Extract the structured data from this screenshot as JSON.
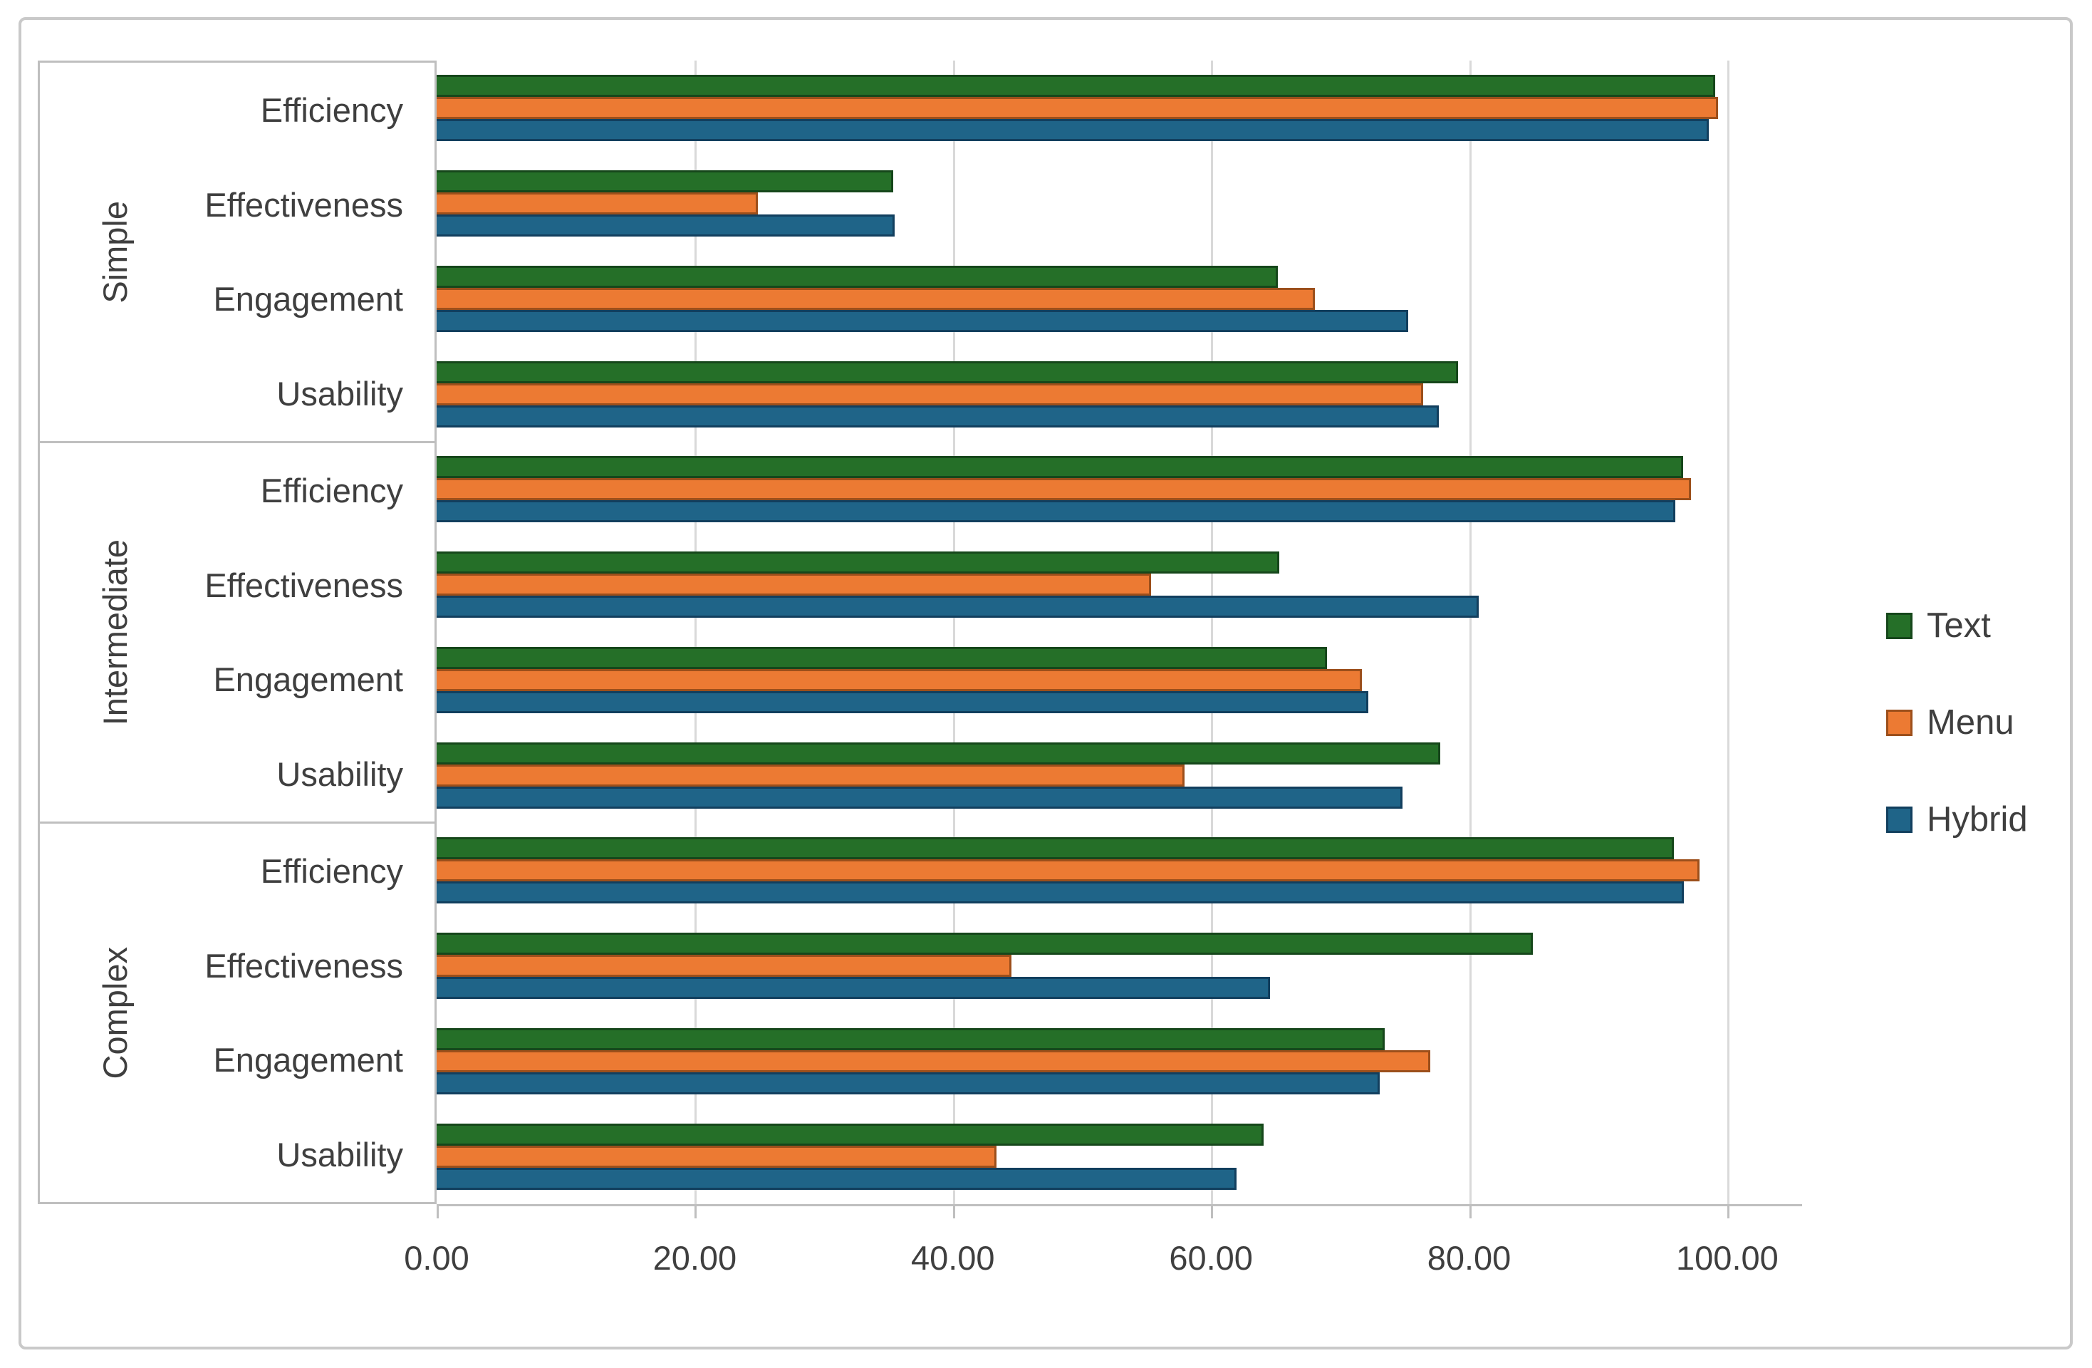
{
  "chart_data": {
    "type": "bar",
    "orientation": "horizontal",
    "grid": true,
    "legend_position": "right",
    "background": "#ffffff",
    "text_color": "#3F3F3F",
    "series": [
      {
        "name": "Text",
        "fill": "#256F28",
        "border": "#16471B"
      },
      {
        "name": "Menu",
        "fill": "#EC7A33",
        "border": "#9C4F1B"
      },
      {
        "name": "Hybrid",
        "fill": "#1F6488",
        "border": "#123F5E"
      }
    ],
    "groups": [
      {
        "label": "Simple",
        "rows": [
          {
            "category": "Efficiency",
            "values": [
              98.9,
              99.1,
              98.4
            ]
          },
          {
            "category": "Effectiveness",
            "values": [
              35.2,
              24.7,
              35.3
            ]
          },
          {
            "category": "Engagement",
            "values": [
              65.0,
              67.9,
              75.1
            ]
          },
          {
            "category": "Usability",
            "values": [
              79.0,
              76.3,
              77.5
            ]
          }
        ]
      },
      {
        "label": "Intermediate",
        "rows": [
          {
            "category": "Efficiency",
            "values": [
              96.4,
              97.0,
              95.8
            ]
          },
          {
            "category": "Effectiveness",
            "values": [
              65.1,
              55.2,
              80.6
            ]
          },
          {
            "category": "Engagement",
            "values": [
              68.8,
              71.5,
              72.0
            ]
          },
          {
            "category": "Usability",
            "values": [
              77.6,
              57.8,
              74.7
            ]
          }
        ]
      },
      {
        "label": "Complex",
        "rows": [
          {
            "category": "Efficiency",
            "values": [
              95.7,
              97.7,
              96.5
            ]
          },
          {
            "category": "Effectiveness",
            "values": [
              84.8,
              44.4,
              64.4
            ]
          },
          {
            "category": "Engagement",
            "values": [
              73.3,
              76.8,
              72.9
            ]
          },
          {
            "category": "Usability",
            "values": [
              63.9,
              43.2,
              61.8
            ]
          }
        ]
      }
    ],
    "x_axis": {
      "min": 0,
      "max": 100,
      "tick_step": 20,
      "tick_values": [
        0,
        20,
        40,
        60,
        80,
        100
      ],
      "tick_labels": [
        "0.00",
        "20.00",
        "40.00",
        "60.00",
        "80.00",
        "100.00"
      ],
      "render_max": 105.8,
      "grid_color": "#D9D9D9",
      "axis_color": "#BFBFBF"
    },
    "legend": [
      "Text",
      "Menu",
      "Hybrid"
    ]
  }
}
